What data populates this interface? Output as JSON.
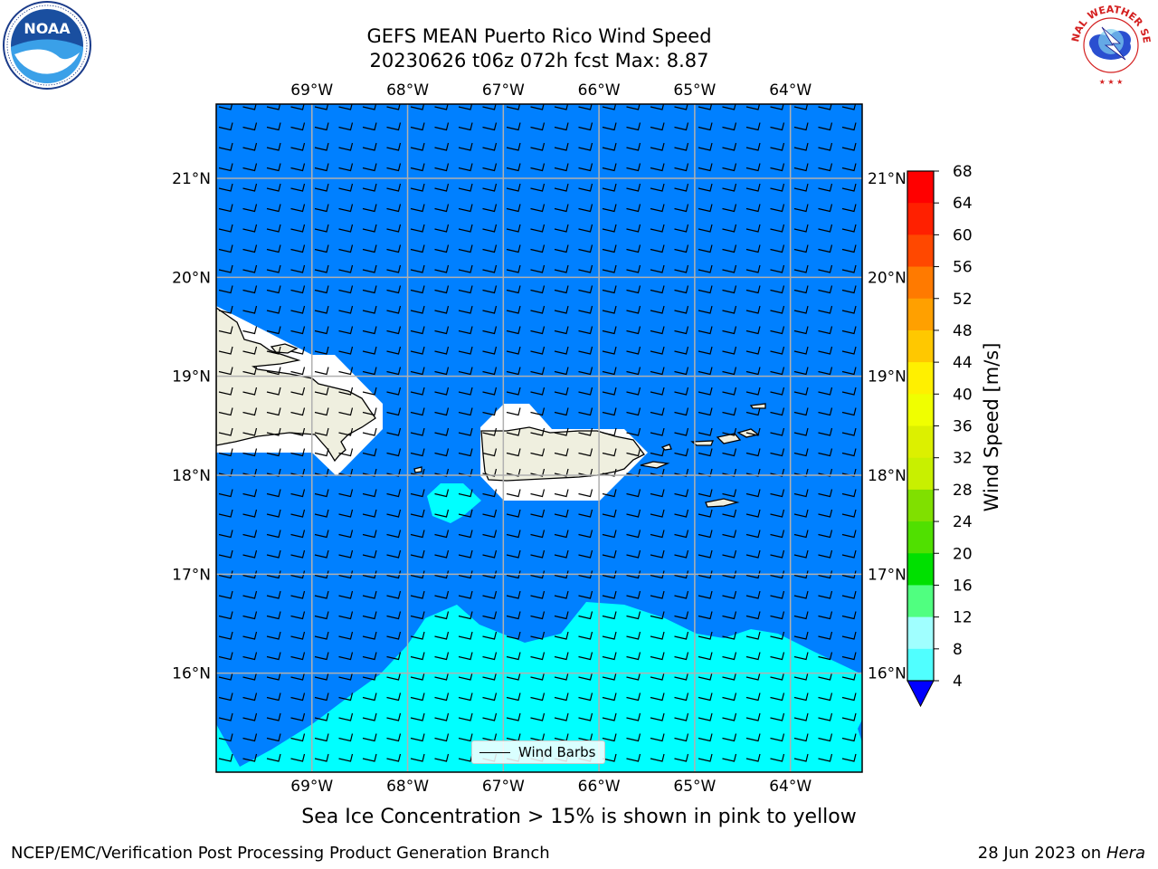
{
  "header": {
    "title": "GEFS MEAN Puerto Rico Wind Speed",
    "subtitle": "20230626 t06z 072h fcst   Max: 8.87"
  },
  "logos": {
    "left": "NOAA",
    "right": "NATIONAL WEATHER SERVICE"
  },
  "map": {
    "lon_labels": [
      "69°W",
      "68°W",
      "67°W",
      "66°W",
      "65°W",
      "64°W"
    ],
    "lat_labels": [
      "21°N",
      "20°N",
      "19°N",
      "18°N",
      "17°N",
      "16°N"
    ],
    "lon_range": [
      -70.0,
      -63.25
    ],
    "lat_range": [
      15.0,
      21.75
    ],
    "wind_speed_max": 8.87,
    "ocean_color": "#0080ff",
    "fast_wind_color": "#00ffff",
    "land_color": "#efefdf"
  },
  "colorbar": {
    "label": "Wind Speed [m/s]",
    "ticks": [
      "68",
      "64",
      "60",
      "56",
      "52",
      "48",
      "44",
      "40",
      "36",
      "32",
      "28",
      "24",
      "20",
      "16",
      "12",
      "8",
      "4"
    ],
    "bin_colors": [
      "#ff0000",
      "#ff2000",
      "#ff4800",
      "#ff7a00",
      "#ffa000",
      "#ffc800",
      "#fff000",
      "#f0ff00",
      "#dcf000",
      "#c8f000",
      "#80e000",
      "#50e000",
      "#00e000",
      "#50ff80",
      "#a0ffff",
      "#50ffff",
      "#00ffff",
      "#0080ff"
    ],
    "extend_color": "#0000ff"
  },
  "legend": {
    "label": "Wind Barbs"
  },
  "note": "Sea Ice Concentration > 15% is shown in pink to yellow",
  "footer": {
    "left": "NCEP/EMC/Verification Post Processing Product Generation Branch",
    "date": "28 Jun 2023 on",
    "machine": "Hera"
  }
}
